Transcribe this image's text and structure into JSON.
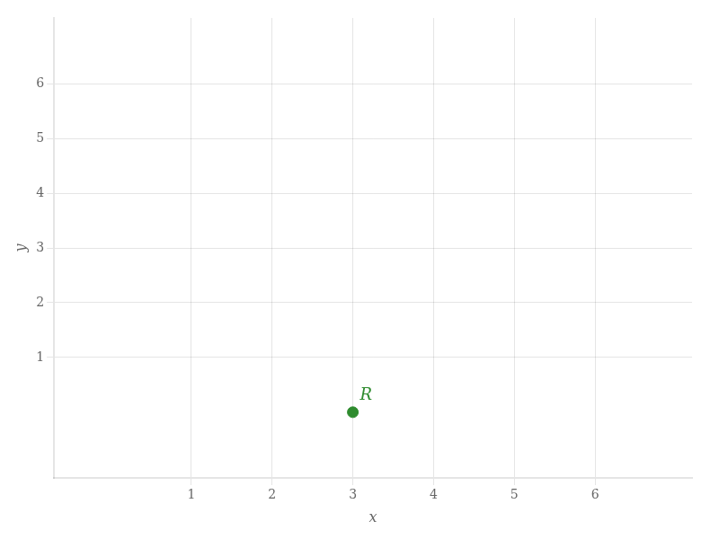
{
  "chart_data": {
    "type": "scatter",
    "x_label": "x",
    "y_label": "y",
    "x": [
      3
    ],
    "values": [
      0
    ],
    "color": "#2e8b2e",
    "xlim": [
      -0.7,
      7.2
    ],
    "ylim": [
      -1.2,
      7.2
    ],
    "xticks": [
      1,
      2,
      3,
      4,
      5,
      6
    ],
    "yticks": [
      1,
      2,
      3,
      4,
      5,
      6
    ],
    "grid": true,
    "annotations": [
      {
        "text": "R",
        "x": 3,
        "y": 0
      }
    ]
  }
}
